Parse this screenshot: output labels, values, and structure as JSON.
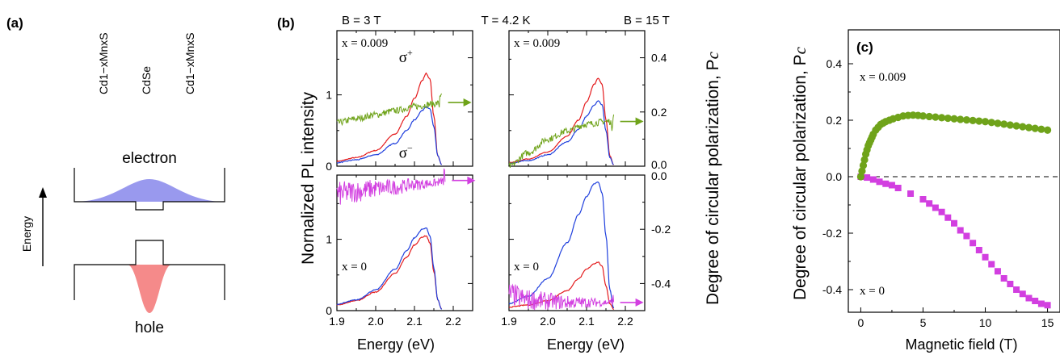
{
  "panel_a": {
    "label": "(a)",
    "layer_left": "Cd1−xMnxS",
    "layer_center": "CdSe",
    "layer_right": "Cd1−xMnxS",
    "electron_label": "electron",
    "hole_label": "hole",
    "energy_label": "Energy",
    "colors": {
      "electron": "#9999ee",
      "hole": "#f58a8a"
    }
  },
  "panel_b": {
    "label": "(b)",
    "header_left": "B = 3 T",
    "header_center": "T = 4.2 K",
    "header_right": "B = 15 T",
    "ylabel_left": "Nornalized PL intensity",
    "ylabel_right": "Degree of circular polarization, P",
    "ylabel_right_sub": "c",
    "xlabel": "Energy (eV)",
    "x_ticks": [
      "1.9",
      "2.0",
      "2.1",
      "2.2"
    ],
    "left_ticks": [
      "0",
      "1"
    ],
    "right_ticks_top": [
      "0.0",
      "0.2",
      "0.4"
    ],
    "right_ticks_bottom": [
      "0.0",
      "-0.2",
      "-0.4"
    ],
    "labels": {
      "x_top": "x = 0.009",
      "x_bottom": "x = 0",
      "sigma_plus": "σ+",
      "sigma_minus": "σ−"
    },
    "colors": {
      "sigma_plus": "#e41a1c",
      "sigma_minus": "#1f3fdd",
      "pc_top": "#6fa31a",
      "pc_bottom": "#d23fe0"
    }
  },
  "panel_c": {
    "label": "(c)",
    "ylabel": "Degree of circular polarization, P",
    "ylabel_sub": "c",
    "xlabel": "Magnetic field (T)",
    "x_ticks": [
      "0",
      "5",
      "10",
      "15"
    ],
    "y_ticks": [
      "0.4",
      "0.2",
      "0.0",
      "-0.2",
      "-0.4"
    ],
    "label_top": "x = 0.009",
    "label_bottom": "x = 0",
    "colors": {
      "x0009": "#6fa31a",
      "x0": "#d23fe0"
    }
  },
  "chart_data": [
    {
      "type": "line",
      "panel": "b-top-left",
      "field": "B = 3 T",
      "composition": "x = 0.009",
      "xlabel": "Energy (eV)",
      "ylabel": "Nornalized PL intensity",
      "xlim": [
        1.9,
        2.25
      ],
      "ylim": [
        0,
        1.9
      ],
      "y2lim": [
        0,
        0.5
      ],
      "series": [
        {
          "name": "σ+",
          "x": [
            1.9,
            1.95,
            2.0,
            2.05,
            2.08,
            2.1,
            2.12,
            2.13,
            2.14,
            2.15,
            2.16,
            2.17
          ],
          "values": [
            0.07,
            0.12,
            0.22,
            0.45,
            0.7,
            0.95,
            1.2,
            1.3,
            1.22,
            0.7,
            0.15,
            0.02
          ]
        },
        {
          "name": "σ−",
          "x": [
            1.9,
            1.95,
            2.0,
            2.05,
            2.08,
            2.1,
            2.12,
            2.13,
            2.14,
            2.15,
            2.16,
            2.17
          ],
          "values": [
            0.05,
            0.09,
            0.16,
            0.32,
            0.5,
            0.65,
            0.78,
            0.84,
            0.8,
            0.55,
            0.15,
            0.02
          ]
        },
        {
          "name": "Pc",
          "x": [
            1.9,
            1.95,
            2.0,
            2.05,
            2.1,
            2.15,
            2.17
          ],
          "values": [
            0.16,
            0.175,
            0.19,
            0.205,
            0.22,
            0.23,
            0.235
          ]
        }
      ]
    },
    {
      "type": "line",
      "panel": "b-top-right",
      "field": "B = 15 T",
      "composition": "x = 0.009",
      "xlim": [
        1.9,
        2.25
      ],
      "ylim": [
        0,
        1.9
      ],
      "y2lim": [
        0,
        0.5
      ],
      "series": [
        {
          "name": "σ+",
          "x": [
            1.9,
            1.95,
            2.0,
            2.05,
            2.08,
            2.1,
            2.12,
            2.13,
            2.14,
            2.15,
            2.16,
            2.17
          ],
          "values": [
            0.05,
            0.1,
            0.2,
            0.42,
            0.65,
            0.9,
            1.15,
            1.23,
            1.15,
            0.65,
            0.15,
            0.02
          ]
        },
        {
          "name": "σ−",
          "x": [
            1.9,
            1.95,
            2.0,
            2.05,
            2.08,
            2.1,
            2.12,
            2.13,
            2.14,
            2.15,
            2.16,
            2.17
          ],
          "values": [
            0.04,
            0.08,
            0.16,
            0.34,
            0.52,
            0.7,
            0.86,
            0.92,
            0.86,
            0.5,
            0.12,
            0.02
          ]
        },
        {
          "name": "Pc",
          "x": [
            1.9,
            1.95,
            2.0,
            2.05,
            2.1,
            2.15,
            2.17
          ],
          "values": [
            0.0,
            0.05,
            0.1,
            0.13,
            0.155,
            0.165,
            0.165
          ]
        }
      ]
    },
    {
      "type": "line",
      "panel": "b-bottom-left",
      "field": "B = 3 T",
      "composition": "x = 0",
      "xlim": [
        1.9,
        2.25
      ],
      "ylim": [
        0,
        1.9
      ],
      "y2lim": [
        -0.5,
        0
      ],
      "series": [
        {
          "name": "σ+",
          "x": [
            1.9,
            1.95,
            2.0,
            2.05,
            2.08,
            2.1,
            2.12,
            2.13,
            2.14,
            2.15,
            2.16,
            2.17
          ],
          "values": [
            0.08,
            0.14,
            0.26,
            0.52,
            0.75,
            0.92,
            1.03,
            1.05,
            0.95,
            0.55,
            0.15,
            0.02
          ]
        },
        {
          "name": "σ−",
          "x": [
            1.9,
            1.95,
            2.0,
            2.05,
            2.08,
            2.1,
            2.12,
            2.13,
            2.14,
            2.15,
            2.16,
            2.17
          ],
          "values": [
            0.09,
            0.15,
            0.29,
            0.58,
            0.84,
            1.02,
            1.14,
            1.16,
            1.05,
            0.6,
            0.15,
            0.02
          ]
        },
        {
          "name": "Pc",
          "x": [
            1.9,
            1.95,
            2.0,
            2.05,
            2.1,
            2.15,
            2.18
          ],
          "values": [
            -0.07,
            -0.06,
            -0.05,
            -0.045,
            -0.035,
            -0.03,
            -0.02
          ]
        }
      ]
    },
    {
      "type": "line",
      "panel": "b-bottom-right",
      "field": "B = 15 T",
      "composition": "x = 0",
      "xlim": [
        1.9,
        2.25
      ],
      "ylim": [
        0,
        1.9
      ],
      "y2lim": [
        -0.5,
        0
      ],
      "series": [
        {
          "name": "σ+",
          "x": [
            1.9,
            1.95,
            2.0,
            2.05,
            2.08,
            2.1,
            2.12,
            2.13,
            2.14,
            2.15,
            2.16,
            2.17
          ],
          "values": [
            0.05,
            0.08,
            0.14,
            0.28,
            0.45,
            0.58,
            0.66,
            0.68,
            0.62,
            0.35,
            0.1,
            0.02
          ]
        },
        {
          "name": "σ−",
          "x": [
            1.9,
            1.95,
            2.0,
            2.05,
            2.08,
            2.1,
            2.12,
            2.13,
            2.14,
            2.15,
            2.16,
            2.17
          ],
          "values": [
            0.1,
            0.2,
            0.45,
            0.95,
            1.35,
            1.6,
            1.78,
            1.8,
            1.65,
            1.05,
            0.3,
            0.03
          ]
        },
        {
          "name": "Pc",
          "x": [
            1.9,
            1.95,
            2.0,
            2.05,
            2.1,
            2.15,
            2.17
          ],
          "values": [
            -0.44,
            -0.46,
            -0.465,
            -0.47,
            -0.47,
            -0.47,
            -0.47
          ]
        }
      ]
    },
    {
      "type": "scatter",
      "panel": "c",
      "xlabel": "Magnetic field (T)",
      "ylabel": "Degree of circular polarization, Pc",
      "xlim": [
        -1,
        16
      ],
      "ylim": [
        -0.48,
        0.52
      ],
      "series": [
        {
          "name": "x = 0.009",
          "x": [
            0,
            0.1,
            0.2,
            0.3,
            0.4,
            0.5,
            0.6,
            0.7,
            0.8,
            0.9,
            1.0,
            1.2,
            1.4,
            1.6,
            1.8,
            2.0,
            2.3,
            2.6,
            3.0,
            3.4,
            3.8,
            4.2,
            4.6,
            5.0,
            5.5,
            6.0,
            6.5,
            7.0,
            7.5,
            8.0,
            8.5,
            9.0,
            9.5,
            10,
            10.5,
            11,
            11.5,
            12,
            12.5,
            13,
            13.5,
            14,
            14.5,
            15
          ],
          "values": [
            0.0,
            0.02,
            0.04,
            0.06,
            0.08,
            0.095,
            0.11,
            0.12,
            0.13,
            0.14,
            0.15,
            0.165,
            0.175,
            0.185,
            0.19,
            0.195,
            0.2,
            0.205,
            0.21,
            0.215,
            0.217,
            0.218,
            0.217,
            0.215,
            0.213,
            0.211,
            0.209,
            0.207,
            0.205,
            0.203,
            0.201,
            0.199,
            0.197,
            0.195,
            0.192,
            0.189,
            0.186,
            0.183,
            0.18,
            0.177,
            0.174,
            0.171,
            0.168,
            0.165
          ]
        },
        {
          "name": "x = 0",
          "x": [
            0,
            0.5,
            1.0,
            1.5,
            2.0,
            2.5,
            3.0,
            4.0,
            5.0,
            5.5,
            6.0,
            6.5,
            7.0,
            7.5,
            8.0,
            8.5,
            9.0,
            9.5,
            10,
            10.5,
            11,
            11.5,
            12,
            12.5,
            13,
            13.5,
            14,
            14.5,
            15
          ],
          "values": [
            0.0,
            -0.003,
            -0.01,
            -0.018,
            -0.025,
            -0.03,
            -0.04,
            -0.06,
            -0.08,
            -0.095,
            -0.11,
            -0.125,
            -0.145,
            -0.165,
            -0.19,
            -0.21,
            -0.235,
            -0.26,
            -0.285,
            -0.31,
            -0.335,
            -0.36,
            -0.38,
            -0.4,
            -0.415,
            -0.43,
            -0.44,
            -0.45,
            -0.455
          ]
        }
      ]
    }
  ]
}
